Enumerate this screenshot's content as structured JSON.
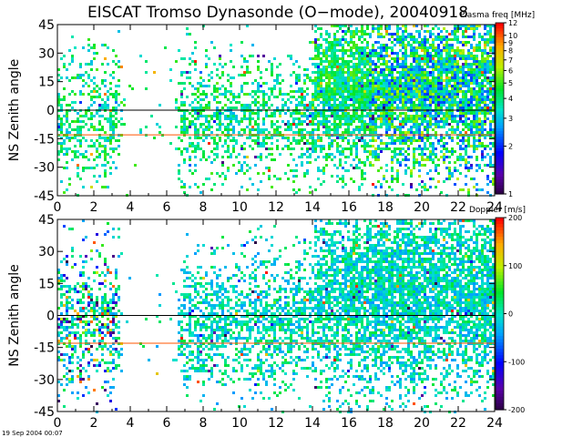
{
  "title": "EISCAT Tromso Dynasonde (O−mode),  20040918",
  "footer": "19 Sep 2004 00:07",
  "chart_data": [
    {
      "type": "heatmap",
      "ylabel": "NS Zenith angle",
      "x_ticks": [
        0,
        2,
        4,
        6,
        8,
        10,
        12,
        14,
        16,
        18,
        20,
        22,
        24
      ],
      "y_ticks": [
        45,
        30,
        15,
        0,
        -15,
        -30,
        -45
      ],
      "xlim": [
        0,
        24
      ],
      "ylim": [
        -45,
        45
      ],
      "reference_lines": [
        {
          "y": 0,
          "color": "#000000"
        },
        {
          "y": -13,
          "color": "#ff5500"
        }
      ],
      "colorbar": {
        "label": "Plasma freq [MHz]",
        "scale": "log",
        "ticks": [
          12,
          10,
          9,
          8,
          7,
          6,
          5,
          4,
          3,
          2,
          1
        ]
      },
      "activity_profile": [
        {
          "hour": 0,
          "level": 0.55
        },
        {
          "hour": 1,
          "level": 0.45
        },
        {
          "hour": 2,
          "level": 0.5
        },
        {
          "hour": 3.2,
          "level": 0.6
        },
        {
          "hour": 3.5,
          "level": 0.05
        },
        {
          "hour": 6.4,
          "level": 0.05
        },
        {
          "hour": 6.8,
          "level": 0.55
        },
        {
          "hour": 12,
          "level": 0.5
        },
        {
          "hour": 15,
          "level": 0.9
        },
        {
          "hour": 20,
          "level": 0.95
        },
        {
          "hour": 24,
          "level": 0.9
        }
      ]
    },
    {
      "type": "heatmap",
      "ylabel": "NS Zenith angle",
      "x_ticks": [
        0,
        2,
        4,
        6,
        8,
        10,
        12,
        14,
        16,
        18,
        20,
        22,
        24
      ],
      "y_ticks": [
        45,
        30,
        15,
        0,
        -15,
        -30,
        -45
      ],
      "xlim": [
        0,
        24
      ],
      "ylim": [
        -45,
        45
      ],
      "reference_lines": [
        {
          "y": 0,
          "color": "#000000"
        },
        {
          "y": -13,
          "color": "#ff5500"
        }
      ],
      "colorbar": {
        "label": "Doppler [m/s]",
        "scale": "linear",
        "ticks": [
          200,
          100,
          0,
          -100,
          -200
        ]
      },
      "activity_profile": [
        {
          "hour": 0,
          "level": 0.5
        },
        {
          "hour": 3.2,
          "level": 0.6
        },
        {
          "hour": 3.5,
          "level": 0.03
        },
        {
          "hour": 6.4,
          "level": 0.03
        },
        {
          "hour": 6.8,
          "level": 0.55
        },
        {
          "hour": 14,
          "level": 0.6
        },
        {
          "hour": 16,
          "level": 0.85
        },
        {
          "hour": 24,
          "level": 0.85
        }
      ]
    }
  ]
}
